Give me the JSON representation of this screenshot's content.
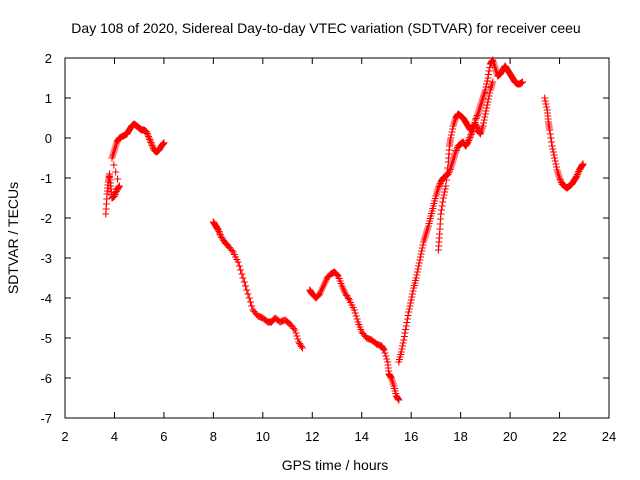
{
  "chart_data": {
    "type": "scatter",
    "title": "Day 108 of 2020, Sidereal Day-to-day VTEC variation (SDTVAR) for receiver ceeu",
    "xlabel": "GPS time / hours",
    "ylabel": "SDTVAR / TECUs",
    "xlim": [
      2,
      24
    ],
    "ylim": [
      -7,
      2
    ],
    "x_ticks": [
      "2",
      "4",
      "6",
      "8",
      "10",
      "12",
      "14",
      "16",
      "18",
      "20",
      "22",
      "24"
    ],
    "y_ticks": [
      "2",
      "1",
      "0",
      "-1",
      "-2",
      "-3",
      "-4",
      "-5",
      "-6",
      "-7"
    ],
    "grid": false,
    "marker": "plus",
    "colors": {
      "series": "#ff0000",
      "axes": "#000000"
    },
    "series": [
      {
        "segments": [
          [
            [
              3.65,
              -1.9
            ],
            [
              3.7,
              -1.4
            ],
            [
              3.75,
              -1.1
            ],
            [
              3.8,
              -0.9
            ],
            [
              3.85,
              -1.2
            ],
            [
              3.9,
              -1.5
            ],
            [
              4.0,
              -1.45
            ],
            [
              4.1,
              -1.3
            ],
            [
              4.2,
              -1.2
            ],
            [
              3.9,
              -0.5
            ],
            [
              4.0,
              -0.3
            ],
            [
              4.1,
              -0.1
            ],
            [
              4.2,
              0.0
            ],
            [
              4.35,
              0.05
            ],
            [
              4.5,
              0.1
            ],
            [
              4.6,
              0.2
            ],
            [
              4.7,
              0.3
            ],
            [
              4.8,
              0.35
            ],
            [
              4.9,
              0.3
            ],
            [
              5.0,
              0.25
            ],
            [
              5.1,
              0.2
            ],
            [
              5.2,
              0.2
            ],
            [
              5.3,
              0.15
            ],
            [
              5.4,
              0.0
            ],
            [
              5.5,
              -0.15
            ],
            [
              5.6,
              -0.3
            ],
            [
              5.7,
              -0.35
            ],
            [
              5.8,
              -0.3
            ],
            [
              5.9,
              -0.2
            ],
            [
              6.0,
              -0.12
            ]
          ],
          [
            [
              8.0,
              -2.1
            ],
            [
              8.1,
              -2.2
            ],
            [
              8.2,
              -2.3
            ],
            [
              8.3,
              -2.45
            ],
            [
              8.45,
              -2.6
            ],
            [
              8.6,
              -2.7
            ],
            [
              8.8,
              -2.85
            ],
            [
              9.0,
              -3.1
            ],
            [
              9.2,
              -3.5
            ],
            [
              9.4,
              -3.9
            ],
            [
              9.6,
              -4.3
            ],
            [
              9.8,
              -4.45
            ],
            [
              10.0,
              -4.5
            ],
            [
              10.2,
              -4.6
            ],
            [
              10.35,
              -4.6
            ],
            [
              10.5,
              -4.5
            ],
            [
              10.7,
              -4.6
            ],
            [
              10.9,
              -4.55
            ],
            [
              11.1,
              -4.65
            ],
            [
              11.3,
              -4.8
            ],
            [
              11.45,
              -5.1
            ],
            [
              11.6,
              -5.25
            ]
          ],
          [
            [
              11.9,
              -3.8
            ],
            [
              12.0,
              -3.9
            ],
            [
              12.15,
              -4.0
            ],
            [
              12.3,
              -3.9
            ],
            [
              12.45,
              -3.7
            ],
            [
              12.6,
              -3.5
            ],
            [
              12.75,
              -3.4
            ],
            [
              12.9,
              -3.35
            ],
            [
              13.05,
              -3.45
            ],
            [
              13.2,
              -3.7
            ],
            [
              13.35,
              -3.9
            ],
            [
              13.5,
              -4.05
            ],
            [
              13.7,
              -4.3
            ],
            [
              13.85,
              -4.6
            ],
            [
              14.0,
              -4.85
            ],
            [
              14.2,
              -5.0
            ],
            [
              14.4,
              -5.05
            ],
            [
              14.6,
              -5.15
            ],
            [
              14.8,
              -5.2
            ],
            [
              14.9,
              -5.3
            ],
            [
              15.05,
              -5.6
            ],
            [
              15.1,
              -5.9
            ],
            [
              15.2,
              -6.0
            ],
            [
              15.3,
              -6.2
            ],
            [
              15.4,
              -6.45
            ],
            [
              15.5,
              -6.55
            ]
          ],
          [
            [
              15.5,
              -5.6
            ],
            [
              15.6,
              -5.35
            ],
            [
              15.7,
              -5.05
            ],
            [
              15.8,
              -4.7
            ],
            [
              15.9,
              -4.35
            ],
            [
              16.0,
              -4.05
            ],
            [
              16.1,
              -3.75
            ],
            [
              16.2,
              -3.5
            ],
            [
              16.3,
              -3.2
            ],
            [
              16.4,
              -2.9
            ],
            [
              16.5,
              -2.6
            ],
            [
              16.6,
              -2.4
            ],
            [
              16.7,
              -2.2
            ],
            [
              16.8,
              -1.95
            ],
            [
              16.9,
              -1.7
            ],
            [
              17.0,
              -1.45
            ],
            [
              17.1,
              -1.25
            ],
            [
              17.2,
              -1.1
            ],
            [
              17.3,
              -1.0
            ],
            [
              17.4,
              -0.95
            ],
            [
              17.5,
              -0.9
            ],
            [
              17.6,
              -0.75
            ],
            [
              17.7,
              -0.55
            ],
            [
              17.8,
              -0.35
            ],
            [
              17.9,
              -0.2
            ],
            [
              18.0,
              -0.15
            ],
            [
              18.1,
              -0.1
            ],
            [
              18.2,
              -0.2
            ],
            [
              18.3,
              -0.1
            ],
            [
              18.4,
              0.05
            ],
            [
              18.5,
              0.2
            ],
            [
              18.6,
              0.45
            ],
            [
              18.7,
              0.6
            ],
            [
              18.8,
              0.8
            ],
            [
              18.9,
              1.0
            ],
            [
              19.0,
              1.2
            ],
            [
              19.1,
              1.5
            ],
            [
              19.2,
              1.85
            ],
            [
              19.3,
              1.95
            ],
            [
              19.4,
              1.75
            ],
            [
              19.5,
              1.55
            ],
            [
              19.6,
              1.6
            ],
            [
              19.7,
              1.7
            ],
            [
              19.8,
              1.8
            ],
            [
              19.9,
              1.7
            ],
            [
              20.0,
              1.6
            ],
            [
              20.1,
              1.5
            ],
            [
              20.2,
              1.4
            ],
            [
              20.3,
              1.35
            ],
            [
              20.4,
              1.35
            ],
            [
              20.5,
              1.4
            ]
          ],
          [
            [
              17.1,
              -2.8
            ],
            [
              17.15,
              -2.4
            ],
            [
              17.2,
              -1.9
            ],
            [
              17.3,
              -1.5
            ],
            [
              17.4,
              -1.2
            ],
            [
              17.5,
              -0.6
            ],
            [
              17.55,
              -0.2
            ],
            [
              17.6,
              0.0
            ],
            [
              17.7,
              0.3
            ],
            [
              17.8,
              0.5
            ],
            [
              17.9,
              0.6
            ],
            [
              18.0,
              0.55
            ],
            [
              18.1,
              0.5
            ],
            [
              18.2,
              0.4
            ],
            [
              18.3,
              0.3
            ],
            [
              18.4,
              0.2
            ],
            [
              18.5,
              0.3
            ],
            [
              18.6,
              0.35
            ],
            [
              18.7,
              0.2
            ],
            [
              18.8,
              0.1
            ],
            [
              18.9,
              0.3
            ],
            [
              19.0,
              0.6
            ],
            [
              19.1,
              0.9
            ],
            [
              19.2,
              1.2
            ],
            [
              19.3,
              1.4
            ]
          ],
          [
            [
              21.4,
              1.0
            ],
            [
              21.5,
              0.7
            ],
            [
              21.55,
              0.4
            ],
            [
              21.6,
              0.2
            ],
            [
              21.7,
              -0.2
            ],
            [
              21.8,
              -0.5
            ],
            [
              21.9,
              -0.8
            ],
            [
              22.0,
              -1.0
            ],
            [
              22.1,
              -1.15
            ],
            [
              22.2,
              -1.2
            ],
            [
              22.3,
              -1.25
            ],
            [
              22.4,
              -1.2
            ],
            [
              22.5,
              -1.15
            ],
            [
              22.6,
              -1.05
            ],
            [
              22.7,
              -0.95
            ],
            [
              22.8,
              -0.8
            ],
            [
              22.9,
              -0.7
            ],
            [
              22.95,
              -0.65
            ]
          ]
        ]
      }
    ]
  }
}
